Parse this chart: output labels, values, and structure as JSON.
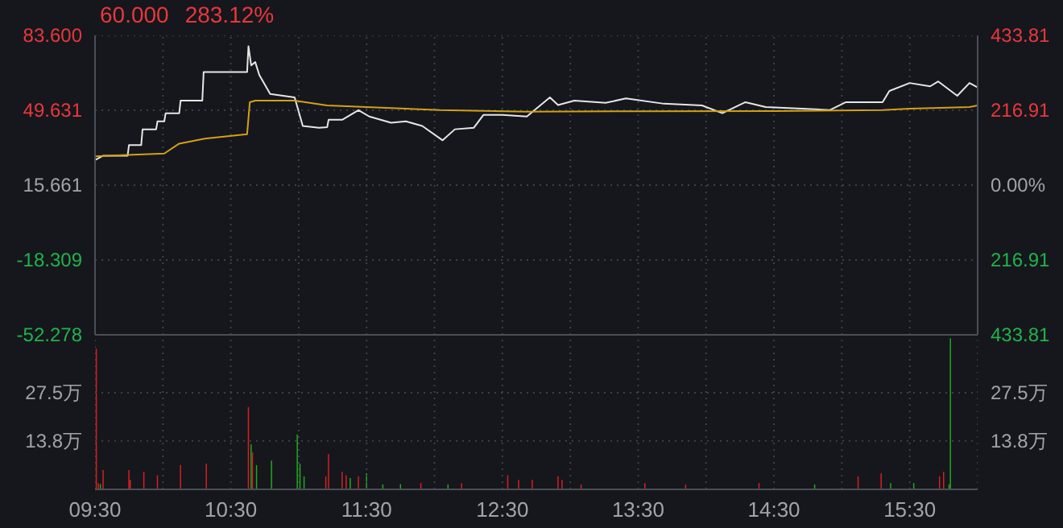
{
  "chart_data": [
    {
      "type": "line",
      "title": "60.000",
      "subtitle": "283.12%",
      "series": [
        {
          "color": "#e6e6e6",
          "x": [
            9.5,
            9.56,
            9.74,
            9.75,
            9.84,
            9.85,
            9.95,
            9.96,
            10.01,
            10.02,
            10.12,
            10.13,
            10.29,
            10.3,
            10.62,
            10.63,
            10.65,
            10.68,
            10.71,
            10.79,
            10.97,
            11.03,
            11.15,
            11.21,
            11.22,
            11.32,
            11.44,
            11.52,
            11.68,
            11.79,
            11.91,
            12.06,
            12.15,
            12.29,
            12.36,
            12.5,
            12.68,
            12.85,
            12.91,
            13.03,
            13.26,
            13.41,
            13.69,
            13.97,
            14.12,
            14.29,
            14.44,
            14.71,
            14.91,
            15.03,
            15.3,
            15.35,
            15.5,
            15.65,
            15.71,
            15.85,
            15.94,
            16
          ],
          "values": [
            27,
            29,
            29,
            33.8,
            33.8,
            41,
            41,
            44.6,
            44.6,
            48.3,
            48.3,
            54,
            54,
            67,
            67,
            78.7,
            70,
            71.5,
            65.6,
            57,
            55.5,
            42.5,
            41.7,
            42,
            45.3,
            45.3,
            49.7,
            46.8,
            44,
            44.6,
            42.5,
            36,
            41,
            41.7,
            47.5,
            47.5,
            46.8,
            55.5,
            52,
            54,
            53,
            55,
            52.6,
            51.8,
            48.3,
            53.3,
            51.1,
            50.4,
            49.7,
            53.3,
            53.3,
            58.4,
            62,
            60.5,
            62.7,
            56.2,
            62,
            60
          ]
        },
        {
          "color": "#d4a017",
          "x": [
            9.5,
            9.74,
            10.01,
            10.12,
            10.3,
            10.62,
            10.64,
            10.68,
            10.97,
            11.21,
            12.04,
            12.68,
            13.5,
            14.5,
            15.3,
            15.5,
            15.94,
            16
          ],
          "values": [
            28.7,
            29.4,
            30,
            34.5,
            36.7,
            38.8,
            53.3,
            54,
            54,
            51.8,
            49.7,
            49,
            49.2,
            49.3,
            49.7,
            50.4,
            51.1,
            51.8
          ]
        }
      ],
      "xlim": [
        9.5,
        16
      ],
      "xticks": [
        {
          "value": 9.5,
          "label": null
        },
        {
          "value": 10,
          "label": null
        },
        {
          "value": 10.5,
          "label": null
        },
        {
          "value": 11,
          "label": null
        },
        {
          "value": 11.5,
          "label": null
        },
        {
          "value": 12,
          "label": null
        },
        {
          "value": 12.5,
          "label": null
        },
        {
          "value": 13,
          "label": null
        },
        {
          "value": 13.5,
          "label": null
        },
        {
          "value": 14,
          "label": null
        },
        {
          "value": 14.5,
          "label": null
        },
        {
          "value": 15,
          "label": null
        },
        {
          "value": 15.5,
          "label": null
        },
        {
          "value": 16,
          "label": null
        }
      ],
      "tick_labels": "y",
      "ylim": [
        -52.278,
        83.6
      ],
      "yticks": [
        {
          "value": 83.6,
          "label": "83.600"
        },
        {
          "value": 49.631,
          "label": "49.631"
        },
        {
          "value": 15.661,
          "label": "15.661"
        },
        {
          "value": -18.309,
          "label": "-18.309"
        },
        {
          "value": -52.278,
          "label": "-52.278"
        }
      ],
      "y2lim": [
        -433.81,
        433.81
      ],
      "y2ticks": [
        {
          "value": 433.81,
          "label": "433.81"
        },
        {
          "value": 216.91,
          "label": "216.91"
        },
        {
          "value": 0,
          "label": "0.00%"
        },
        {
          "value": -216.91,
          "label": "216.91"
        },
        {
          "value": -433.81,
          "label": "433.81"
        }
      ],
      "grid": true
    },
    {
      "type": "bar",
      "x": [
        9.51,
        9.525,
        9.54,
        9.56,
        9.75,
        9.76,
        9.86,
        9.96,
        10.13,
        10.32,
        10.63,
        10.65,
        10.66,
        10.69,
        10.8,
        10.99,
        11.01,
        11.04,
        11.2,
        11.22,
        11.32,
        11.35,
        11.38,
        11.44,
        11.5,
        11.62,
        11.75,
        11.9,
        12.1,
        12.2,
        12.54,
        12.62,
        12.72,
        12.91,
        12.94,
        13.08,
        13.55,
        13.85,
        14.39,
        14.8,
        15.12,
        15.29,
        15.36,
        15.53,
        15.72,
        15.75,
        15.79,
        15.8
      ],
      "values": [
        40,
        1.8,
        1.5,
        5.5,
        5.5,
        2.7,
        5,
        4,
        6.9,
        7.3,
        23.4,
        12.8,
        10.5,
        6.9,
        8.2,
        15.6,
        7.3,
        3.7,
        3.7,
        10,
        5,
        4,
        3.2,
        3.7,
        4.6,
        1.4,
        1.5,
        1.8,
        1.4,
        1.8,
        4,
        2.7,
        2.7,
        3.7,
        2.7,
        1.4,
        1.8,
        1.4,
        1.8,
        1.4,
        3.7,
        4.6,
        1.8,
        1.8,
        3.7,
        5,
        1.4,
        43
      ],
      "colors": [
        "#d42020",
        "#d42020",
        "#1fa81f",
        "#d42020",
        "#d42020",
        "#d42020",
        "#d42020",
        "#d42020",
        "#d42020",
        "#d42020",
        "#d42020",
        "#1fa81f",
        "#d42020",
        "#1fa81f",
        "#1fa81f",
        "#1fa81f",
        "#1fa81f",
        "#1fa81f",
        "#d42020",
        "#d42020",
        "#d42020",
        "#d42020",
        "#1fa81f",
        "#d42020",
        "#1fa81f",
        "#1fa81f",
        "#1fa81f",
        "#d42020",
        "#1fa81f",
        "#d42020",
        "#d42020",
        "#d42020",
        "#d42020",
        "#d42020",
        "#d42020",
        "#d42020",
        "#d42020",
        "#d42020",
        "#d42020",
        "#1fa81f",
        "#d42020",
        "#d42020",
        "#1fa81f",
        "#1fa81f",
        "#d42020",
        "#d42020",
        "#1fa81f",
        "#1fa81f"
      ],
      "xlim": [
        9.5,
        16
      ],
      "xticks": [
        {
          "value": 9.5,
          "label": "09:30"
        },
        {
          "value": 10,
          "label": null
        },
        {
          "value": 10.5,
          "label": "10:30"
        },
        {
          "value": 11,
          "label": null
        },
        {
          "value": 11.5,
          "label": "11:30"
        },
        {
          "value": 12,
          "label": null
        },
        {
          "value": 12.5,
          "label": "12:30"
        },
        {
          "value": 13,
          "label": null
        },
        {
          "value": 13.5,
          "label": "13:30"
        },
        {
          "value": 14,
          "label": null
        },
        {
          "value": 14.5,
          "label": "14:30"
        },
        {
          "value": 15,
          "label": null
        },
        {
          "value": 15.5,
          "label": "15:30"
        },
        {
          "value": 16,
          "label": null
        }
      ],
      "ylim": [
        0,
        43.5
      ],
      "yticks": [
        {
          "value": 27.5,
          "label": "27.5万"
        },
        {
          "value": 13.8,
          "label": "13.8万"
        }
      ],
      "y2lim": [
        0,
        43.5
      ],
      "y2ticks": [
        {
          "value": 27.5,
          "label": "27.5万"
        },
        {
          "value": 13.8,
          "label": "13.8万"
        }
      ],
      "grid": true
    }
  ]
}
